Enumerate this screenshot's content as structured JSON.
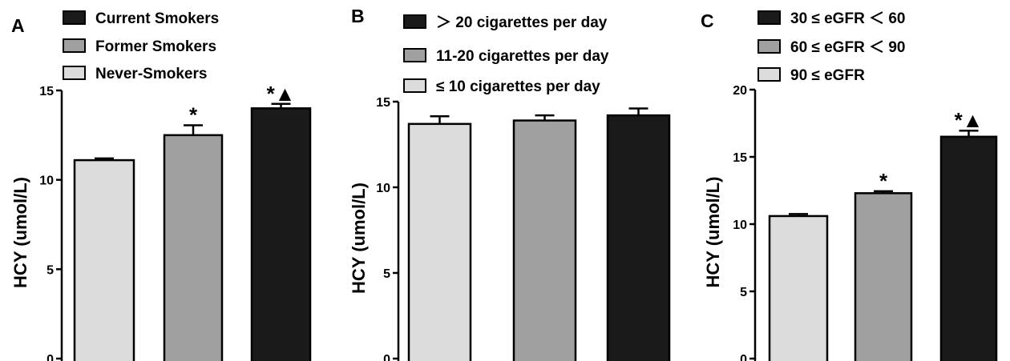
{
  "chart_data": [
    {
      "type": "bar",
      "panel": "A",
      "ylabel": "HCY (umol/L)",
      "ylim": [
        0,
        15
      ],
      "yticks": [
        "0",
        "5",
        "10",
        "15"
      ],
      "legend_position": "top",
      "series": [
        {
          "name": "Never-Smokers",
          "value": 11.1,
          "error": 0.1,
          "color": "#dcdcdc",
          "annotation": ""
        },
        {
          "name": "Former Smokers",
          "value": 12.5,
          "error": 0.55,
          "color": "#a0a0a0",
          "annotation": "*"
        },
        {
          "name": "Current Smokers",
          "value": 14.0,
          "error": 0.25,
          "color": "#1a1a1a",
          "annotation": "*▲"
        }
      ],
      "legend": [
        "Current Smokers",
        "Former Smokers",
        "Never-Smokers"
      ]
    },
    {
      "type": "bar",
      "panel": "B",
      "ylabel": "HCY (umol/L)",
      "ylim": [
        0,
        15
      ],
      "yticks": [
        "0",
        "5",
        "10",
        "15"
      ],
      "legend_position": "top",
      "series": [
        {
          "name": "≤ 10 cigarettes per day",
          "value": 13.7,
          "error": 0.45,
          "color": "#dcdcdc",
          "annotation": ""
        },
        {
          "name": "11-20 cigarettes per day",
          "value": 13.9,
          "error": 0.3,
          "color": "#a0a0a0",
          "annotation": ""
        },
        {
          "name": "> 20 cigarettes per day",
          "value": 14.2,
          "error": 0.4,
          "color": "#1a1a1a",
          "annotation": ""
        }
      ],
      "legend": [
        "＞ 20 cigarettes per day",
        "11-20 cigarettes per day",
        "≤ 10 cigarettes per day"
      ]
    },
    {
      "type": "bar",
      "panel": "C",
      "ylabel": "HCY (umol/L)",
      "ylim": [
        0,
        20
      ],
      "yticks": [
        "0",
        "5",
        "10",
        "15",
        "20"
      ],
      "legend_position": "top",
      "series": [
        {
          "name": "90 ≤ eGFR",
          "value": 10.6,
          "error": 0.15,
          "color": "#dcdcdc",
          "annotation": ""
        },
        {
          "name": "60 ≤ eGFR < 90",
          "value": 12.3,
          "error": 0.15,
          "color": "#a0a0a0",
          "annotation": "*"
        },
        {
          "name": "30 ≤ eGFR < 60",
          "value": 16.5,
          "error": 0.45,
          "color": "#1a1a1a",
          "annotation": "*▲"
        }
      ],
      "legend": [
        "30 ≤  eGFR ＜ 60",
        "60 ≤  eGFR ＜ 90",
        "90 ≤  eGFR"
      ]
    }
  ]
}
